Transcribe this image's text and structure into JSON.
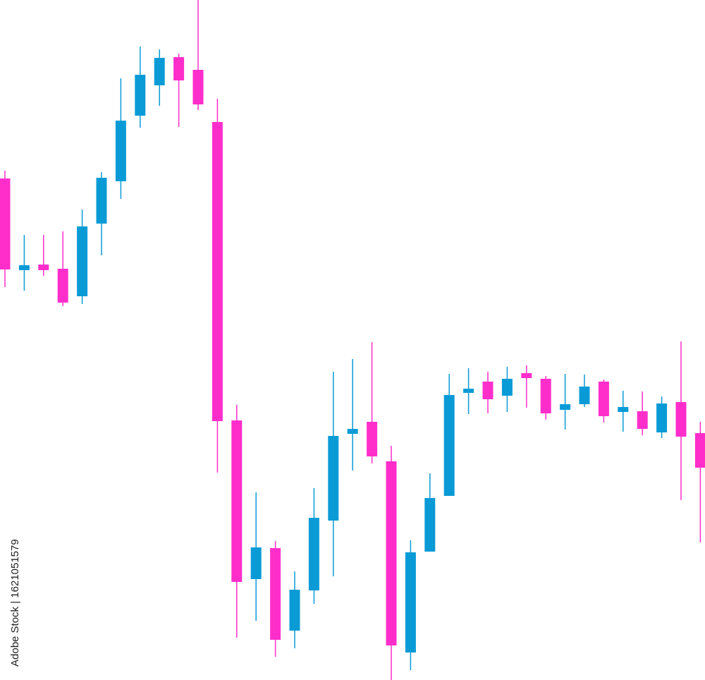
{
  "chart_data": {
    "type": "candlestick",
    "watermark": "Adobe Stock | 1621051579",
    "up_color": "#0a9bd6",
    "down_color": "#ff2ecb",
    "ylim": [
      0,
      964
    ],
    "open": [
      711,
      581,
      589,
      583,
      544,
      647,
      707,
      800,
      843,
      883,
      865,
      791,
      368,
      143,
      187,
      70,
      127,
      226,
      349,
      366,
      310,
      39,
      182,
      261,
      407,
      423,
      403,
      435,
      427,
      383,
      391,
      423,
      380,
      381,
      351,
      394,
      350
    ],
    "high": [
      722,
      631,
      631,
      636,
      667,
      720,
      853,
      898,
      894,
      888,
      964,
      824,
      390,
      266,
      197,
      154,
      272,
      437,
      455,
      479,
      332,
      198,
      293,
      434,
      442,
      437,
      444,
      446,
      431,
      434,
      433,
      426,
      410,
      409,
      402,
      480,
      366
    ],
    "low": [
      557,
      552,
      573,
      530,
      533,
      602,
      682,
      783,
      814,
      784,
      808,
      294,
      60,
      84,
      33,
      45,
      108,
      147,
      297,
      307,
      0,
      14,
      182,
      261,
      377,
      378,
      380,
      386,
      369,
      355,
      387,
      365,
      352,
      347,
      343,
      255,
      195
    ],
    "close": [
      582,
      588,
      581,
      535,
      643,
      712,
      793,
      858,
      882,
      850,
      816,
      367,
      139,
      188,
      57,
      128,
      230,
      346,
      356,
      317,
      49,
      181,
      258,
      404,
      413,
      398,
      427,
      428,
      378,
      391,
      416,
      374,
      387,
      356,
      392,
      345,
      301
    ]
  }
}
